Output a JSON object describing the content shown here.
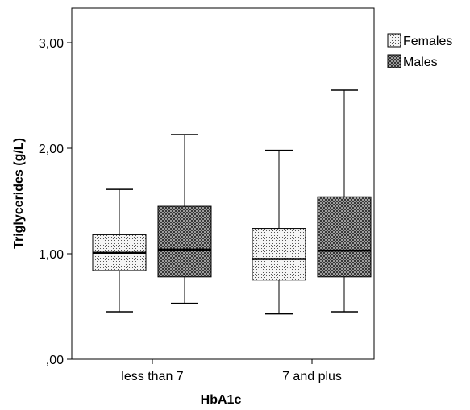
{
  "chart_data": {
    "type": "boxplot",
    "xlabel": "HbA1c",
    "ylabel": "Triglycerides (g/L)",
    "categories": [
      "less than 7",
      "7 and plus"
    ],
    "ylim": [
      0,
      3.0
    ],
    "yticks": [
      {
        "value": 0,
        "label": ",00"
      },
      {
        "value": 1,
        "label": "1,00"
      },
      {
        "value": 2,
        "label": "2,00"
      },
      {
        "value": 3,
        "label": "3,00"
      }
    ],
    "grid": false,
    "legend_position": "top-right",
    "series": [
      {
        "name": "Females",
        "pattern": "dotted",
        "boxes": [
          {
            "min": 0.45,
            "q1": 0.84,
            "median": 1.01,
            "q3": 1.18,
            "max": 1.61
          },
          {
            "min": 0.43,
            "q1": 0.75,
            "median": 0.95,
            "q3": 1.24,
            "max": 1.98
          }
        ]
      },
      {
        "name": "Males",
        "pattern": "crosshatch",
        "boxes": [
          {
            "min": 0.53,
            "q1": 0.78,
            "median": 1.04,
            "q3": 1.45,
            "max": 2.13
          },
          {
            "min": 0.45,
            "q1": 0.78,
            "median": 1.03,
            "q3": 1.54,
            "max": 2.55
          }
        ]
      }
    ]
  }
}
